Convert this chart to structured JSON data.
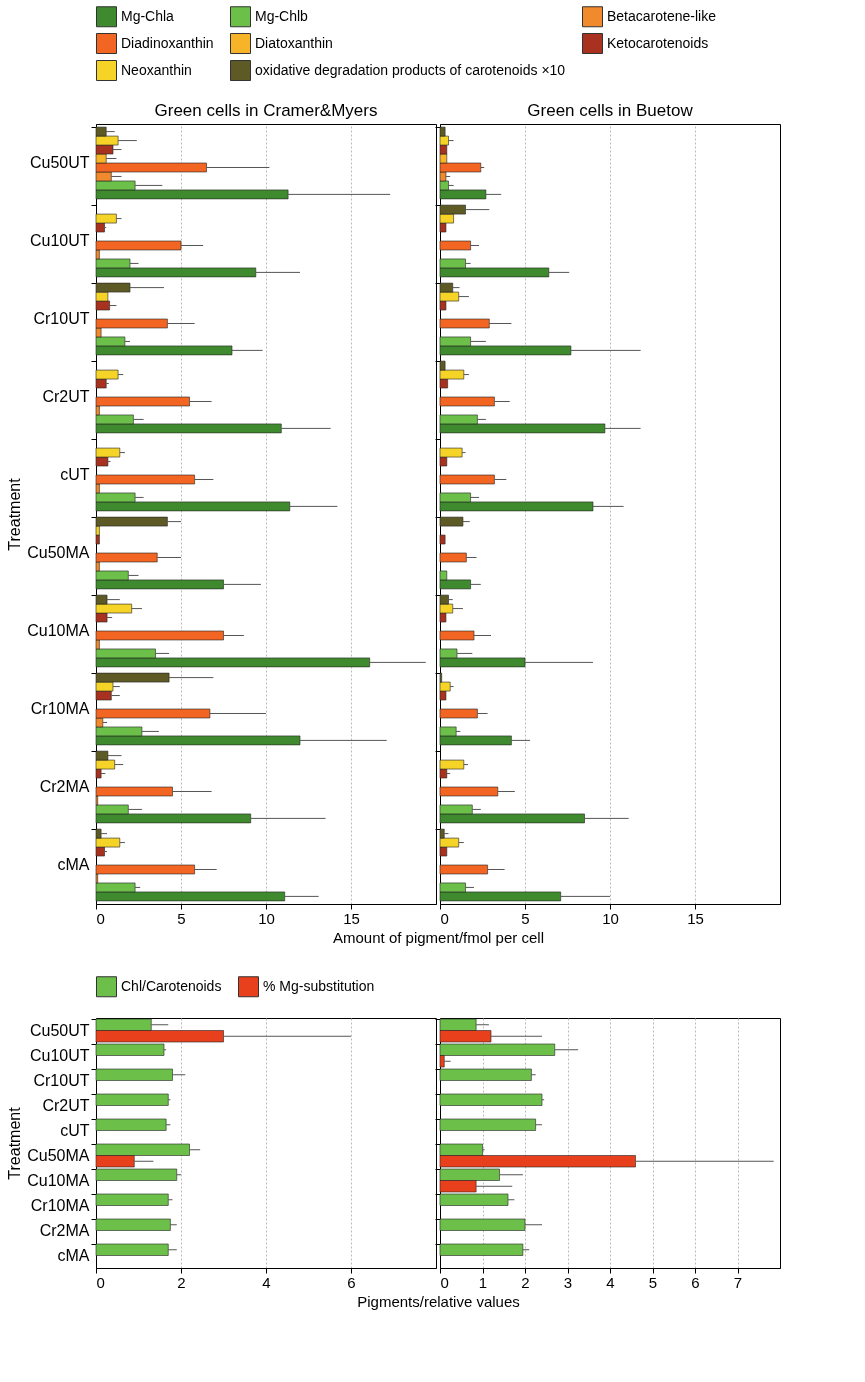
{
  "chart_data": [
    {
      "type": "bar",
      "orientation": "horizontal",
      "title": "Green cells in Cramer&Myers",
      "xlabel": "Amount of pigment/fmol per cell",
      "ylabel": "Treatment",
      "categories": [
        "Cu50UT",
        "Cu10UT",
        "Cr10UT",
        "Cr2UT",
        "cUT",
        "Cu50MA",
        "Cu10MA",
        "Cr10MA",
        "Cr2MA",
        "cMA"
      ],
      "xlim": [
        0,
        20
      ],
      "xticks": [
        0,
        5,
        10,
        15
      ],
      "grid": "x",
      "legend": "top",
      "series": [
        {
          "name": "Mg-Chla",
          "color": "#3f8a2e",
          "values": [
            11.3,
            9.4,
            8.0,
            10.9,
            11.4,
            7.5,
            16.1,
            12.0,
            9.1,
            11.1
          ],
          "errors": [
            [
              11.3,
              17.3
            ],
            [
              9.4,
              12.0
            ],
            [
              8.0,
              9.8
            ],
            [
              10.9,
              13.8
            ],
            [
              11.4,
              14.2
            ],
            [
              7.5,
              9.7
            ],
            [
              16.1,
              19.4
            ],
            [
              12.0,
              17.1
            ],
            [
              9.1,
              13.5
            ],
            [
              11.1,
              13.1
            ]
          ]
        },
        {
          "name": "Mg-Chlb",
          "color": "#6cc04a",
          "values": [
            2.3,
            2.0,
            1.7,
            2.2,
            2.3,
            1.9,
            3.5,
            2.7,
            1.9,
            2.3
          ],
          "errors": [
            [
              2.3,
              3.9
            ],
            [
              2.0,
              2.5
            ],
            [
              1.7,
              2.0
            ],
            [
              2.2,
              2.8
            ],
            [
              2.3,
              2.8
            ],
            [
              1.9,
              2.5
            ],
            [
              3.5,
              4.3
            ],
            [
              2.7,
              3.7
            ],
            [
              1.9,
              2.7
            ],
            [
              2.3,
              2.6
            ]
          ]
        },
        {
          "name": "Betacarotene-like",
          "color": "#f08a2c",
          "values": [
            0.9,
            0.2,
            0.3,
            0.2,
            0.2,
            0.2,
            0.2,
            0.4,
            0.1,
            0.1
          ],
          "errors": [
            [
              0.9,
              1.5
            ],
            null,
            null,
            null,
            null,
            null,
            null,
            [
              0.4,
              0.65
            ],
            null,
            null
          ]
        },
        {
          "name": "Diadinoxanthin",
          "color": "#f26522",
          "values": [
            6.5,
            5.0,
            4.2,
            5.5,
            5.8,
            3.6,
            7.5,
            6.7,
            4.5,
            5.8
          ],
          "errors": [
            [
              6.5,
              10.2
            ],
            [
              5.0,
              6.3
            ],
            [
              4.2,
              5.8
            ],
            [
              5.5,
              6.8
            ],
            [
              5.8,
              6.9
            ],
            [
              3.6,
              5.0
            ],
            [
              7.5,
              8.7
            ],
            [
              6.7,
              10.0
            ],
            [
              4.5,
              6.8
            ],
            [
              5.8,
              7.1
            ]
          ]
        },
        {
          "name": "Diatoxanthin",
          "color": "#f7b428",
          "values": [
            0.6,
            null,
            null,
            null,
            null,
            null,
            null,
            null,
            null,
            null
          ],
          "errors": [
            [
              0.6,
              1.2
            ],
            null,
            null,
            null,
            null,
            null,
            null,
            null,
            null,
            null
          ]
        },
        {
          "name": "Ketocarotenoids",
          "color": "#a8321f",
          "values": [
            1.0,
            0.5,
            0.8,
            0.6,
            0.7,
            0.2,
            0.65,
            0.9,
            0.3,
            0.5
          ],
          "errors": [
            [
              1.0,
              1.5
            ],
            [
              0.5,
              0.6
            ],
            [
              0.8,
              1.2
            ],
            [
              0.6,
              0.75
            ],
            [
              0.7,
              0.85
            ],
            null,
            [
              0.65,
              0.95
            ],
            [
              0.9,
              1.4
            ],
            [
              0.3,
              0.55
            ],
            [
              0.5,
              0.65
            ]
          ]
        },
        {
          "name": "Neoxanthin",
          "color": "#f5d327",
          "values": [
            1.3,
            1.2,
            0.7,
            1.3,
            1.4,
            0.2,
            2.1,
            1.0,
            1.1,
            1.4
          ],
          "errors": [
            [
              1.3,
              2.4
            ],
            [
              1.2,
              1.5
            ],
            null,
            [
              1.3,
              1.6
            ],
            [
              1.4,
              1.7
            ],
            null,
            [
              2.1,
              2.7
            ],
            [
              1.0,
              1.4
            ],
            [
              1.1,
              1.6
            ],
            [
              1.4,
              1.7
            ]
          ]
        },
        {
          "name": "oxidative degradation products of carotenoids ×10",
          "color": "#5e5a26",
          "values": [
            0.6,
            null,
            2.0,
            null,
            null,
            4.2,
            0.65,
            4.3,
            0.7,
            0.3
          ],
          "errors": [
            [
              0.6,
              1.1
            ],
            null,
            [
              2.0,
              4.0
            ],
            null,
            null,
            [
              4.2,
              5.0
            ],
            [
              0.65,
              1.4
            ],
            [
              4.3,
              6.9
            ],
            [
              0.7,
              1.5
            ],
            [
              0.3,
              0.65
            ]
          ]
        }
      ]
    },
    {
      "type": "bar",
      "orientation": "horizontal",
      "title": "Green cells in Buetow",
      "categories": [
        "Cu50UT",
        "Cu10UT",
        "Cr10UT",
        "Cr2UT",
        "cUT",
        "Cu50MA",
        "Cu10MA",
        "Cr10MA",
        "Cr2MA",
        "cMA"
      ],
      "xlim": [
        0,
        20
      ],
      "xticks": [
        0,
        5,
        10,
        15
      ],
      "grid": "x",
      "legend": "top",
      "tick_labels": "x",
      "series": [
        {
          "name": "Mg-Chla",
          "color": "#3f8a2e",
          "values": [
            2.7,
            6.4,
            7.7,
            9.7,
            9.0,
            1.8,
            5.0,
            4.2,
            8.5,
            7.1
          ],
          "errors": [
            [
              2.7,
              3.6
            ],
            [
              6.4,
              7.6
            ],
            [
              7.7,
              11.8
            ],
            [
              9.7,
              11.8
            ],
            [
              9.0,
              10.8
            ],
            [
              1.8,
              2.4
            ],
            [
              5.0,
              9.0
            ],
            [
              4.2,
              5.3
            ],
            [
              8.5,
              11.1
            ],
            [
              7.1,
              10.0
            ]
          ]
        },
        {
          "name": "Mg-Chlb",
          "color": "#6cc04a",
          "values": [
            0.5,
            1.5,
            1.8,
            2.2,
            1.8,
            0.4,
            1.0,
            0.95,
            1.9,
            1.5
          ],
          "errors": [
            [
              0.5,
              0.8
            ],
            [
              1.5,
              1.8
            ],
            [
              1.8,
              2.7
            ],
            [
              2.2,
              2.7
            ],
            [
              1.8,
              2.3
            ],
            null,
            [
              1.0,
              1.9
            ],
            [
              0.95,
              1.2
            ],
            [
              1.9,
              2.4
            ],
            [
              1.5,
              2.0
            ]
          ]
        },
        {
          "name": "Betacarotene-like",
          "color": "#f08a2c",
          "values": [
            0.35,
            null,
            null,
            null,
            null,
            null,
            null,
            null,
            null,
            null
          ],
          "errors": [
            [
              0.35,
              0.6
            ],
            null,
            null,
            null,
            null,
            null,
            null,
            null,
            null,
            null
          ]
        },
        {
          "name": "Diadinoxanthin",
          "color": "#f26522",
          "values": [
            2.4,
            1.8,
            2.9,
            3.2,
            3.2,
            1.55,
            2.0,
            2.2,
            3.4,
            2.8
          ],
          "errors": [
            [
              2.4,
              2.6
            ],
            [
              1.8,
              2.3
            ],
            [
              2.9,
              4.2
            ],
            [
              3.2,
              4.1
            ],
            [
              3.2,
              3.9
            ],
            [
              1.55,
              2.15
            ],
            [
              2.0,
              3.0
            ],
            [
              2.2,
              2.8
            ],
            [
              3.4,
              4.4
            ],
            [
              2.8,
              3.8
            ]
          ]
        },
        {
          "name": "Diatoxanthin",
          "color": "#f7b428",
          "values": [
            0.4,
            null,
            null,
            null,
            null,
            null,
            null,
            null,
            null,
            null
          ]
        },
        {
          "name": "Ketocarotenoids",
          "color": "#a8321f",
          "values": [
            0.4,
            0.35,
            0.35,
            0.45,
            0.4,
            0.3,
            0.35,
            0.35,
            0.4,
            0.4
          ],
          "errors": [
            null,
            null,
            null,
            null,
            null,
            null,
            null,
            null,
            [
              0.4,
              0.6
            ],
            null
          ]
        },
        {
          "name": "Neoxanthin",
          "color": "#f5d327",
          "values": [
            0.5,
            0.8,
            1.1,
            1.4,
            1.3,
            null,
            0.75,
            0.6,
            1.4,
            1.1
          ],
          "errors": [
            [
              0.5,
              0.8
            ],
            null,
            [
              1.1,
              1.7
            ],
            [
              1.4,
              1.7
            ],
            [
              1.3,
              1.5
            ],
            null,
            [
              0.75,
              1.35
            ],
            [
              0.6,
              0.8
            ],
            [
              1.4,
              1.65
            ],
            [
              1.1,
              1.4
            ]
          ]
        },
        {
          "name": "oxidative degradation products of carotenoids ×10",
          "color": "#5e5a26",
          "values": [
            0.3,
            1.5,
            0.75,
            0.3,
            null,
            1.35,
            0.5,
            0.1,
            null,
            0.25
          ],
          "errors": [
            null,
            [
              1.5,
              2.9
            ],
            [
              0.75,
              1.15
            ],
            null,
            null,
            [
              1.35,
              1.75
            ],
            [
              0.5,
              0.75
            ],
            null,
            null,
            [
              0.25,
              0.5
            ]
          ]
        }
      ]
    },
    {
      "type": "bar",
      "orientation": "horizontal",
      "xlabel": "Pigments/relative values",
      "ylabel": "Treatment",
      "categories": [
        "Cu50UT",
        "Cu10UT",
        "Cr10UT",
        "Cr2UT",
        "cUT",
        "Cu50MA",
        "Cu10MA",
        "Cr10MA",
        "Cr2MA",
        "cMA"
      ],
      "xlim": [
        0,
        8
      ],
      "xticks": [
        0,
        2,
        4,
        6
      ],
      "grid": "x",
      "legend": "top",
      "series": [
        {
          "name": "Chl/Carotenoids",
          "color": "#6cc04a",
          "values": [
            1.3,
            1.6,
            1.8,
            1.7,
            1.65,
            2.2,
            1.9,
            1.7,
            1.75,
            1.7
          ],
          "errors": [
            [
              1.3,
              1.7
            ],
            [
              1.6,
              1.65
            ],
            [
              1.8,
              2.1
            ],
            [
              1.7,
              1.75
            ],
            [
              1.65,
              1.75
            ],
            [
              2.2,
              2.45
            ],
            [
              1.9,
              2.0
            ],
            [
              1.7,
              1.8
            ],
            [
              1.75,
              1.9
            ],
            [
              1.7,
              1.9
            ]
          ]
        },
        {
          "name": "% Mg-substitution",
          "color": "#e8401c",
          "values": [
            3.0,
            null,
            null,
            null,
            null,
            0.9,
            null,
            null,
            null,
            null
          ],
          "errors": [
            [
              3.0,
              6.0
            ],
            null,
            null,
            null,
            null,
            [
              0.9,
              1.35
            ],
            null,
            null,
            null,
            null
          ]
        }
      ]
    },
    {
      "type": "bar",
      "orientation": "horizontal",
      "categories": [
        "Cu50UT",
        "Cu10UT",
        "Cr10UT",
        "Cr2UT",
        "cUT",
        "Cu50MA",
        "Cu10MA",
        "Cr10MA",
        "Cr2MA",
        "cMA"
      ],
      "xlim": [
        0,
        8
      ],
      "xticks": [
        0,
        1,
        2,
        3,
        4,
        5,
        6,
        7
      ],
      "grid": "x",
      "legend": "top",
      "tick_labels": "x",
      "series": [
        {
          "name": "Chl/Carotenoids",
          "color": "#6cc04a",
          "values": [
            0.85,
            2.7,
            2.15,
            2.4,
            2.25,
            1.0,
            1.4,
            1.6,
            2.0,
            1.95
          ],
          "errors": [
            [
              0.85,
              1.15
            ],
            [
              2.7,
              3.25
            ],
            [
              2.15,
              2.25
            ],
            [
              2.4,
              2.45
            ],
            [
              2.25,
              2.4
            ],
            [
              1.0,
              1.05
            ],
            [
              1.4,
              1.95
            ],
            [
              1.6,
              1.75
            ],
            [
              2.0,
              2.4
            ],
            [
              1.95,
              2.1
            ]
          ]
        },
        {
          "name": "% Mg-substitution",
          "color": "#e8401c",
          "values": [
            1.2,
            0.1,
            null,
            null,
            null,
            4.6,
            0.85,
            null,
            null,
            null
          ],
          "errors": [
            [
              1.2,
              2.4
            ],
            [
              0.1,
              0.25
            ],
            null,
            null,
            null,
            [
              4.6,
              7.85
            ],
            [
              0.85,
              1.7
            ],
            null,
            null,
            null
          ]
        }
      ]
    }
  ]
}
